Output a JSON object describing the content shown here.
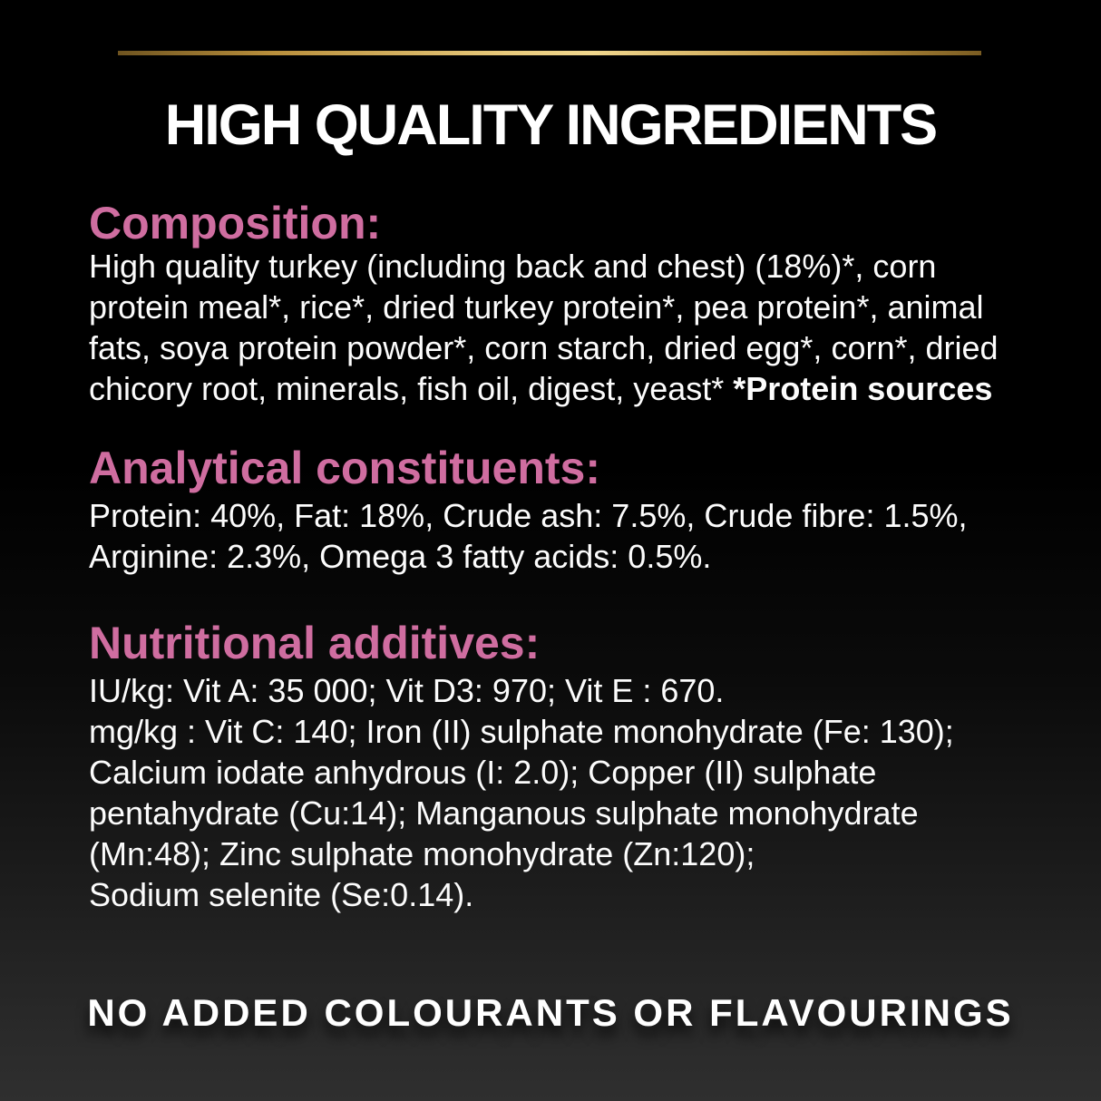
{
  "header": {
    "title": "HIGH QUALITY INGREDIENTS"
  },
  "sections": {
    "composition": {
      "heading": "Composition:",
      "lines": [
        "High quality turkey (including back and chest) (18%)*, corn",
        "protein meal*, rice*, dried turkey protein*, pea protein*, animal",
        "fats, soya protein powder*, corn starch, dried egg*, corn*, dried",
        "chicory root, minerals, fish oil, digest, yeast* "
      ],
      "protein_note": "*Protein sources"
    },
    "analytical": {
      "heading": "Analytical constituents:",
      "lines": [
        "Protein: 40%, Fat: 18%, Crude ash: 7.5%, Crude fibre: 1.5%,",
        "Arginine: 2.3%, Omega 3 fatty acids: 0.5%."
      ]
    },
    "nutritional": {
      "heading": "Nutritional additives:",
      "lines": [
        "IU/kg: Vit A: 35 000; Vit D3: 970; Vit E : 670.",
        "mg/kg : Vit C: 140; Iron (II) sulphate monohydrate (Fe: 130);",
        "Calcium iodate anhydrous (I: 2.0); Copper (II) sulphate",
        "pentahydrate (Cu:14); Manganous sulphate monohydrate",
        "(Mn:48); Zinc sulphate monohydrate (Zn:120);",
        "Sodium selenite (Se:0.14)."
      ]
    }
  },
  "footer": {
    "claim": "NO ADDED COLOURANTS OR FLAVOURINGS"
  },
  "colors": {
    "accent_pink": "#cf6da0",
    "gold": "#c9a04a",
    "background_top": "#000000",
    "background_bottom": "#2f2f2f",
    "text": "#ffffff"
  }
}
